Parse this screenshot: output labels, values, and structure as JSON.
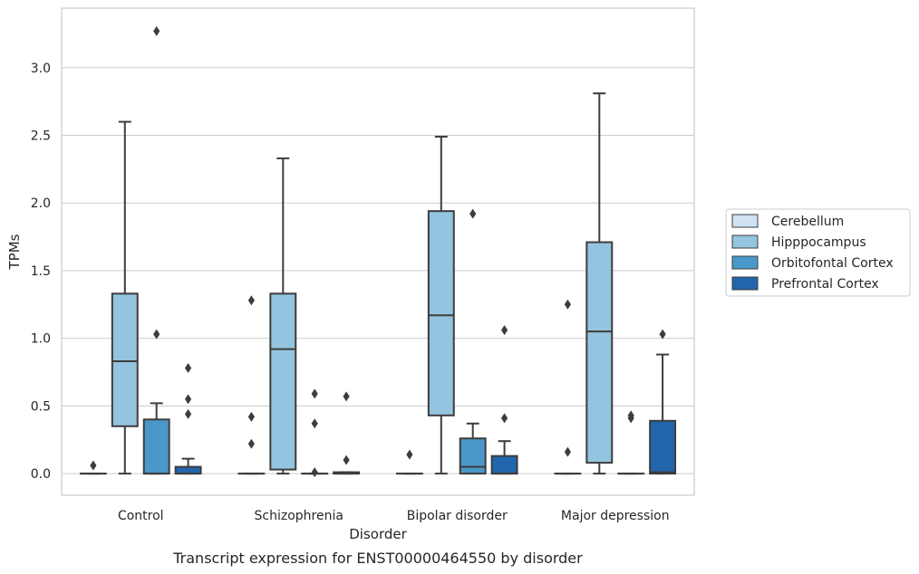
{
  "chart_data": {
    "type": "box",
    "title": "",
    "caption": "Transcript expression for ENST00000464550 by disorder",
    "xlabel": "Disorder",
    "ylabel": "TPMs",
    "ylim": [
      -0.16,
      3.44
    ],
    "yticks": [
      0.0,
      0.5,
      1.0,
      1.5,
      2.0,
      2.5,
      3.0
    ],
    "ytick_labels": [
      "0.0",
      "0.5",
      "1.0",
      "1.5",
      "2.0",
      "2.5",
      "3.0"
    ],
    "grid": "horizontal",
    "legend_placement": "center-right",
    "categories": [
      "Control",
      "Schizophrenia",
      "Bipolar disorder",
      "Major depression"
    ],
    "series": [
      {
        "name": "Cerebellum",
        "color": "#d0e1f2",
        "boxes": [
          {
            "q1": 0,
            "median": 0,
            "q3": 0,
            "whisker_low": 0,
            "whisker_high": 0,
            "outliers": [
              0.06
            ]
          },
          {
            "q1": 0,
            "median": 0,
            "q3": 0,
            "whisker_low": 0,
            "whisker_high": 0,
            "outliers": [
              0.22,
              0.42,
              1.28
            ]
          },
          {
            "q1": 0,
            "median": 0,
            "q3": 0,
            "whisker_low": 0,
            "whisker_high": 0,
            "outliers": [
              0.14
            ]
          },
          {
            "q1": 0,
            "median": 0,
            "q3": 0,
            "whisker_low": 0,
            "whisker_high": 0,
            "outliers": [
              0.16,
              1.25
            ]
          }
        ]
      },
      {
        "name": "Hipppocampus",
        "color": "#94c4df",
        "boxes": [
          {
            "q1": 0.35,
            "median": 0.83,
            "q3": 1.33,
            "whisker_low": 0,
            "whisker_high": 2.6,
            "outliers": []
          },
          {
            "q1": 0.03,
            "median": 0.92,
            "q3": 1.33,
            "whisker_low": 0,
            "whisker_high": 2.33,
            "outliers": []
          },
          {
            "q1": 0.43,
            "median": 1.17,
            "q3": 1.94,
            "whisker_low": 0,
            "whisker_high": 2.49,
            "outliers": []
          },
          {
            "q1": 0.08,
            "median": 1.05,
            "q3": 1.71,
            "whisker_low": 0,
            "whisker_high": 2.81,
            "outliers": []
          }
        ]
      },
      {
        "name": "Orbitofontal Cortex",
        "color": "#4a98c9",
        "boxes": [
          {
            "q1": 0,
            "median": 0,
            "q3": 0.4,
            "whisker_low": 0,
            "whisker_high": 0.52,
            "outliers": [
              1.03,
              3.27
            ]
          },
          {
            "q1": 0,
            "median": 0,
            "q3": 0,
            "whisker_low": 0,
            "whisker_high": 0,
            "outliers": [
              0.01,
              0.37,
              0.59
            ]
          },
          {
            "q1": 0,
            "median": 0.05,
            "q3": 0.26,
            "whisker_low": 0,
            "whisker_high": 0.37,
            "outliers": [
              1.92
            ]
          },
          {
            "q1": 0,
            "median": 0,
            "q3": 0,
            "whisker_low": 0,
            "whisker_high": 0,
            "outliers": [
              0.41,
              0.43
            ]
          }
        ]
      },
      {
        "name": "Prefrontal Cortex",
        "color": "#2166ac",
        "boxes": [
          {
            "q1": 0,
            "median": 0,
            "q3": 0.05,
            "whisker_low": 0,
            "whisker_high": 0.11,
            "outliers": [
              0.44,
              0.55,
              0.78
            ]
          },
          {
            "q1": 0,
            "median": 0,
            "q3": 0.01,
            "whisker_low": 0,
            "whisker_high": 0.01,
            "outliers": [
              0.1,
              0.57
            ]
          },
          {
            "q1": 0,
            "median": 0,
            "q3": 0.13,
            "whisker_low": 0,
            "whisker_high": 0.24,
            "outliers": [
              0.41,
              1.06
            ]
          },
          {
            "q1": 0,
            "median": 0.01,
            "q3": 0.39,
            "whisker_low": 0,
            "whisker_high": 0.88,
            "outliers": [
              1.03
            ]
          }
        ]
      }
    ]
  }
}
